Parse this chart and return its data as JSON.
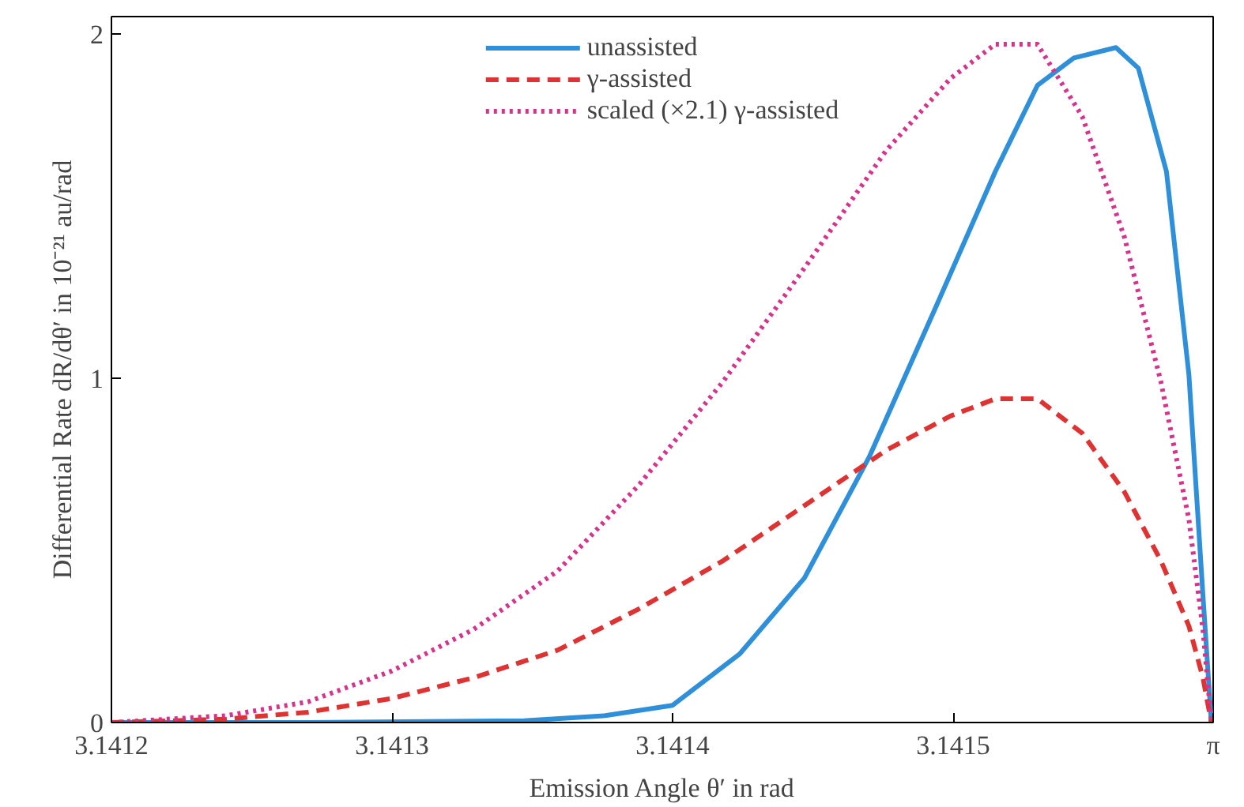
{
  "chart_data": {
    "type": "line",
    "xlabel": "Emission Angle θ′ in rad",
    "ylabel": "Differential Rate dR/dθ′ in 10⁻²¹ au/rad",
    "xlim": [
      3.1412,
      3.14159265
    ],
    "ylim": [
      0,
      2.05
    ],
    "xticks": [
      3.1412,
      3.1413,
      3.1414,
      3.1415,
      {
        "value": 3.14159265,
        "label": "π"
      }
    ],
    "yticks": [
      0,
      1,
      2
    ],
    "grid": false,
    "legend": "top",
    "marker": "none",
    "series": [
      {
        "name": "unassisted",
        "color": "#2f8fd8",
        "line_style": "solid",
        "x": [
          3.1412,
          3.14127,
          3.141347,
          3.141376,
          3.1414,
          3.141424,
          3.141447,
          3.14147,
          3.141494,
          3.141515,
          3.14153,
          3.141543,
          3.141558,
          3.141566,
          3.141576,
          3.141584,
          3.141589,
          3.141592
        ],
        "values": [
          0,
          0,
          0.005,
          0.02,
          0.05,
          0.2,
          0.42,
          0.77,
          1.21,
          1.6,
          1.85,
          1.93,
          1.96,
          1.9,
          1.6,
          1.01,
          0.37,
          0
        ]
      },
      {
        "name": "γ-assisted",
        "color": "#dd3333",
        "line_style": "dashed",
        "x": [
          3.1412,
          3.141241,
          3.14127,
          3.1413,
          3.141329,
          3.141359,
          3.141388,
          3.141418,
          3.141447,
          3.141476,
          3.141499,
          3.141515,
          3.14153,
          3.141546,
          3.141561,
          3.141574,
          3.141584,
          3.141589,
          3.141592
        ],
        "values": [
          0,
          0.01,
          0.03,
          0.07,
          0.13,
          0.21,
          0.33,
          0.47,
          0.63,
          0.79,
          0.89,
          0.94,
          0.94,
          0.84,
          0.67,
          0.47,
          0.28,
          0.13,
          0
        ]
      },
      {
        "name": "scaled (×2.1) γ-assisted",
        "color": "#d6338a",
        "line_style": "dotted",
        "x": [
          3.1412,
          3.141241,
          3.14127,
          3.1413,
          3.141329,
          3.141359,
          3.141388,
          3.141418,
          3.141447,
          3.141476,
          3.141499,
          3.141515,
          3.14153,
          3.141546,
          3.141561,
          3.141574,
          3.141584,
          3.141589,
          3.141592
        ],
        "values": [
          0,
          0.02,
          0.06,
          0.15,
          0.27,
          0.44,
          0.69,
          0.99,
          1.32,
          1.66,
          1.87,
          1.97,
          1.97,
          1.76,
          1.41,
          0.99,
          0.59,
          0.27,
          0
        ]
      }
    ]
  }
}
